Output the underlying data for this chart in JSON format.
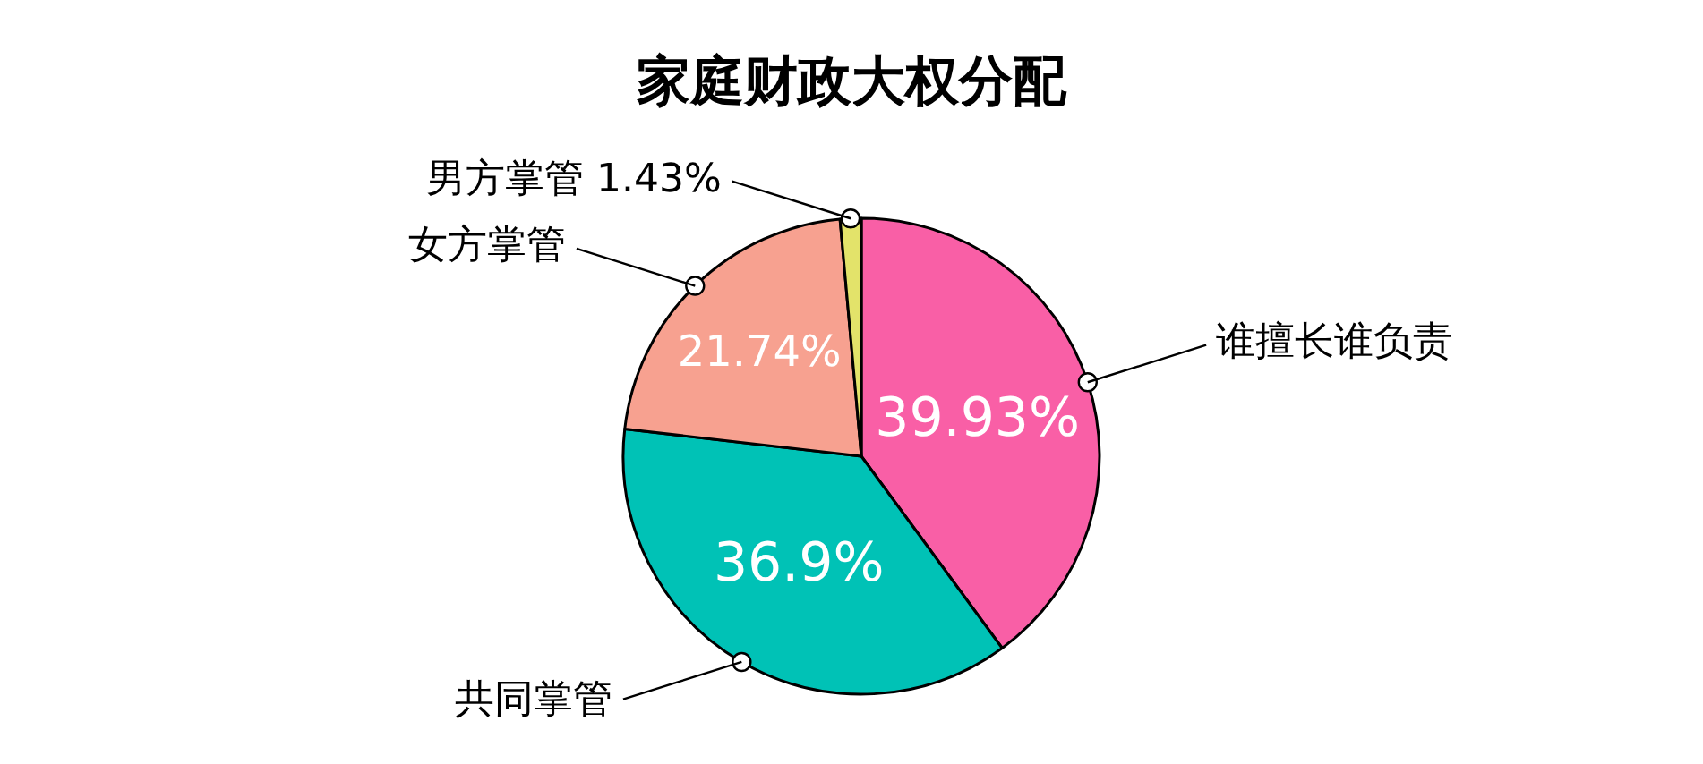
{
  "chart_data": {
    "type": "pie",
    "title": "家庭财政大权分配",
    "categories": [
      "谁擅长谁负责",
      "共同掌管",
      "女方掌管",
      "男方掌管"
    ],
    "values": [
      39.93,
      36.9,
      21.74,
      1.43
    ],
    "colors": [
      "#f95fa6",
      "#00c2b6",
      "#f7a190",
      "#e3e36a"
    ],
    "value_labels": [
      "39.93%",
      "36.9%",
      "21.74%",
      "1.43%"
    ],
    "legend": false
  }
}
